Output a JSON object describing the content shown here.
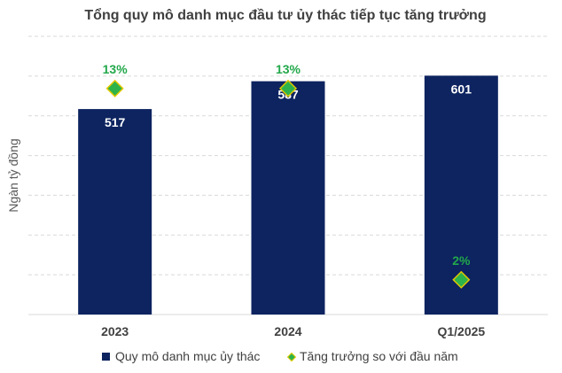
{
  "chart_data": {
    "type": "bar",
    "title": "Tổng quy mô danh mục đầu tư ủy thác tiếp tục tăng trưởng",
    "ylabel": "Ngàn tỷ đồng",
    "xlabel": "",
    "categories": [
      "2023",
      "2024",
      "Q1/2025"
    ],
    "ylim": [
      0,
      700
    ],
    "grid": true,
    "legend_position": "bottom",
    "series": [
      {
        "name": "Quy mô danh mục ủy thác",
        "type": "bar",
        "values": [
          517,
          587,
          601
        ],
        "labels": [
          "517",
          "587",
          "601"
        ],
        "color": "#0d2460"
      },
      {
        "name": "Tăng trưởng so với đầu năm",
        "type": "scatter",
        "marker": "diamond",
        "values": [
          13,
          13,
          2
        ],
        "labels": [
          "13%",
          "13%",
          "2%"
        ],
        "unit": "%",
        "ylim": [
          0,
          16
        ],
        "color": "#22a84a",
        "marker_fill": "#2eb34b",
        "marker_edge": "#e3c800"
      }
    ]
  }
}
